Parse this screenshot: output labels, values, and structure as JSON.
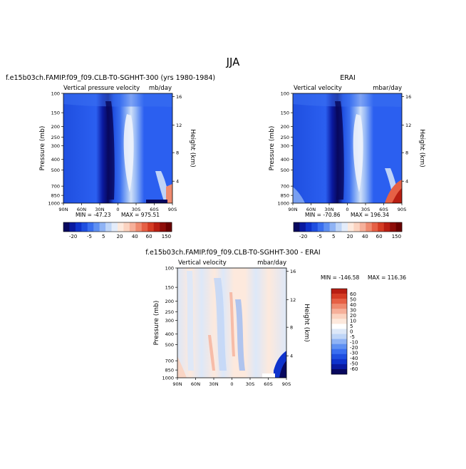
{
  "figure": {
    "title": "JJA"
  },
  "colors": {
    "diverging_scale": [
      "#08085e",
      "#0a1aa0",
      "#0f33cc",
      "#1f4fe0",
      "#3a6ff0",
      "#5f90f2",
      "#8fb3f5",
      "#bfd5f7",
      "#e3ecfa",
      "#fde9dd",
      "#fbd3c0",
      "#f6b09a",
      "#ef8a6f",
      "#e66045",
      "#d53c24",
      "#b81e12",
      "#8e0c08",
      "#6a0000"
    ],
    "difference_scale": [
      "#08085e",
      "#0a1aa0",
      "#0f33cc",
      "#1f4fe0",
      "#3a6ff0",
      "#5f90f2",
      "#8fb3f5",
      "#bfd5f7",
      "#dde8f8",
      "#ffffff",
      "#fde9dd",
      "#fbd3c0",
      "#f6b09a",
      "#ef8a6f",
      "#e66045",
      "#d53c24",
      "#b81e12"
    ]
  },
  "chart_data": [
    {
      "type": "heatmap",
      "title": "f.e15b03ch.FAMIP.f09_f09.CLB-T0-SGHHT-300 (yrs 1980-1984)",
      "left_label": "Vertical pressure velocity",
      "right_label": "mb/day",
      "ylabel": "Pressure (mb)",
      "y2label": "Height (km)",
      "x_ticks": [
        "90N",
        "60N",
        "30N",
        "0",
        "30S",
        "60S",
        "90S"
      ],
      "y_ticks": [
        "100",
        "150",
        "200",
        "250",
        "300",
        "400",
        "500",
        "700",
        "850",
        "1000"
      ],
      "y2_ticks": [
        "16",
        "12",
        "8",
        "4"
      ],
      "min_label": "MIN = -47.23",
      "max_label": "MAX = 975.51",
      "colorbar_labels": [
        "-20",
        "-5",
        "5",
        "20",
        "40",
        "60",
        "150"
      ]
    },
    {
      "type": "heatmap",
      "title": "ERAI",
      "left_label": "Vertical velocity",
      "right_label": "mbar/day",
      "ylabel": "Pressure (mb)",
      "y2label": "Height (km)",
      "x_ticks": [
        "90N",
        "60N",
        "30N",
        "0",
        "30S",
        "60S",
        "90S"
      ],
      "y_ticks": [
        "100",
        "150",
        "200",
        "250",
        "300",
        "400",
        "500",
        "700",
        "850",
        "1000"
      ],
      "y2_ticks": [
        "16",
        "12",
        "8",
        "4"
      ],
      "min_label": "MIN = -70.86",
      "max_label": "MAX = 196.34",
      "colorbar_labels": [
        "-20",
        "-5",
        "5",
        "20",
        "40",
        "60",
        "150"
      ]
    },
    {
      "type": "heatmap",
      "title": "f.e15b03ch.FAMIP.f09_f09.CLB-T0-SGHHT-300 - ERAI",
      "left_label": "Vertical velocity",
      "right_label": "mbar/day",
      "ylabel": "Pressure (mb)",
      "y2label": "Height (km)",
      "x_ticks": [
        "90N",
        "60N",
        "30N",
        "0",
        "30S",
        "60S",
        "90S"
      ],
      "y_ticks": [
        "100",
        "150",
        "200",
        "250",
        "300",
        "400",
        "500",
        "700",
        "850",
        "1000"
      ],
      "y2_ticks": [
        "16",
        "12",
        "8",
        "4"
      ],
      "min_label": "MIN = -146.58",
      "max_label": "MAX = 116.36",
      "colorbar_labels": [
        "60",
        "50",
        "40",
        "30",
        "20",
        "10",
        "5",
        "0",
        "-5",
        "-10",
        "-20",
        "-30",
        "-40",
        "-50",
        "-60"
      ]
    }
  ]
}
